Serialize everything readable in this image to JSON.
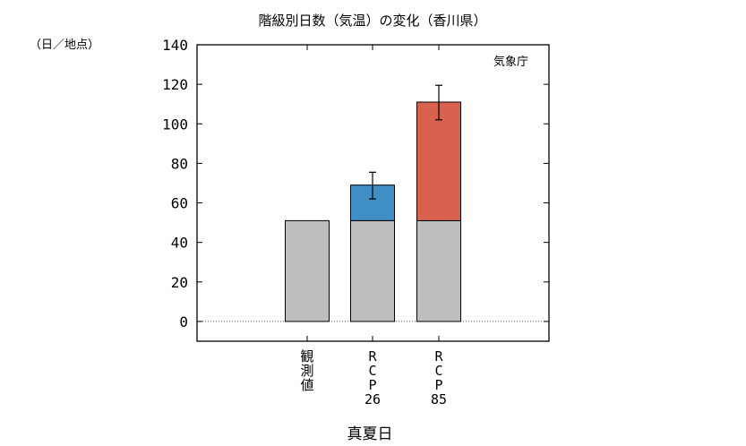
{
  "chart_data": {
    "type": "bar",
    "title": "階級別日数（気温）の変化（香川県）",
    "unit_label": "（日／地点）",
    "source": "気象庁",
    "xlabel": "真夏日",
    "ylim": [
      -10,
      140
    ],
    "yticks": [
      "0",
      "20",
      "40",
      "60",
      "80",
      "100",
      "120",
      "140"
    ],
    "categories": [
      {
        "label_lines": [
          "観",
          "測",
          "値"
        ]
      },
      {
        "label_lines": [
          "R",
          "C",
          "P",
          "26"
        ]
      },
      {
        "label_lines": [
          "R",
          "C",
          "P",
          "85"
        ]
      }
    ],
    "series": [
      {
        "values": [
          51,
          51,
          51
        ],
        "color": "#bebebe"
      },
      {
        "values": [
          0,
          18,
          0
        ],
        "color": "#3f8fc4"
      },
      {
        "values": [
          0,
          0,
          60
        ],
        "color": "#d9624e"
      }
    ],
    "error_bars": [
      null,
      {
        "center": 69,
        "low": 62,
        "high": 75.5
      },
      {
        "center": 111,
        "low": 102,
        "high": 119.5
      }
    ],
    "grid": false,
    "zero_line": "dotted"
  }
}
